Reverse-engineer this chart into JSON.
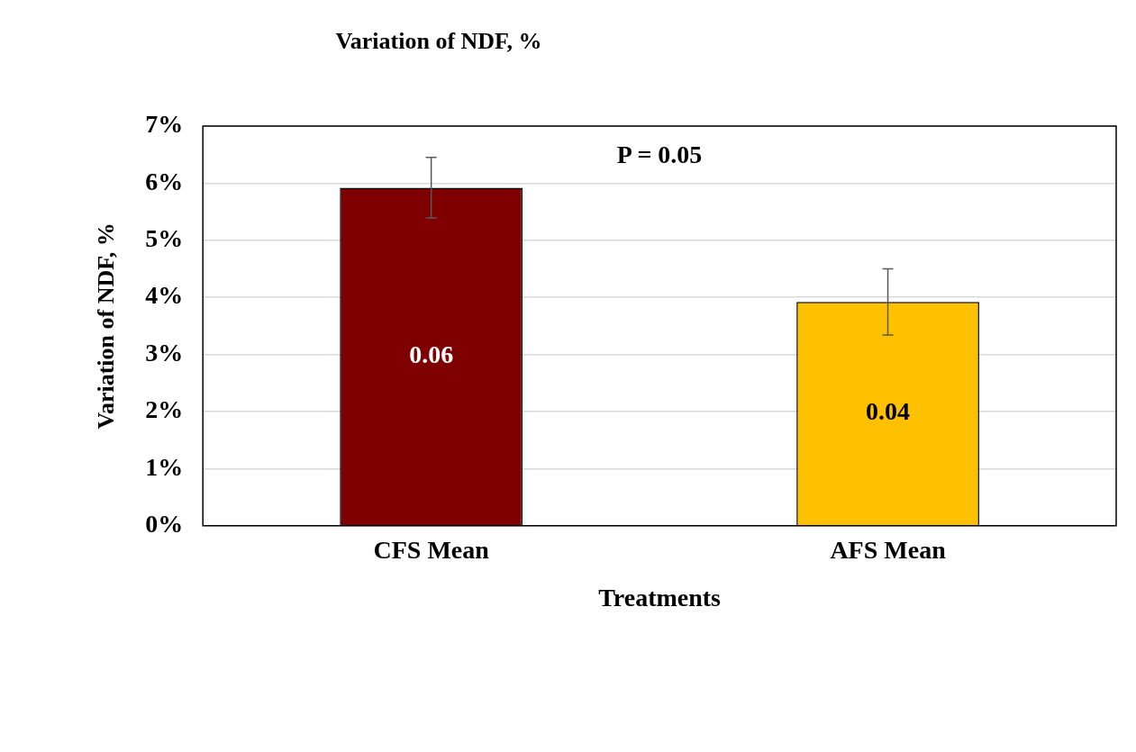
{
  "chart_data": {
    "type": "bar",
    "title": "Variation of NDF, %",
    "xlabel": "Treatments",
    "ylabel": "Variation of NDF, %",
    "categories": [
      "CFS Mean",
      "AFS Mean"
    ],
    "values": [
      0.0592,
      0.0392
    ],
    "colors": [
      "#7f0000",
      "#ffc000"
    ],
    "errors": [
      0.0053,
      0.0058
    ],
    "value_labels": [
      "0.06",
      "0.04"
    ],
    "ylim": [
      0,
      0.07
    ],
    "yticks": [
      {
        "value": 0,
        "label": "0%"
      },
      {
        "value": 0.01,
        "label": "1%"
      },
      {
        "value": 0.02,
        "label": "2%"
      },
      {
        "value": 0.03,
        "label": "3%"
      },
      {
        "value": 0.04,
        "label": "4%"
      },
      {
        "value": 0.05,
        "label": "5%"
      },
      {
        "value": 0.06,
        "label": "6%"
      },
      {
        "value": 0.07,
        "label": "7%"
      }
    ],
    "grid": "y",
    "annotations": [
      "P = 0.05"
    ]
  }
}
